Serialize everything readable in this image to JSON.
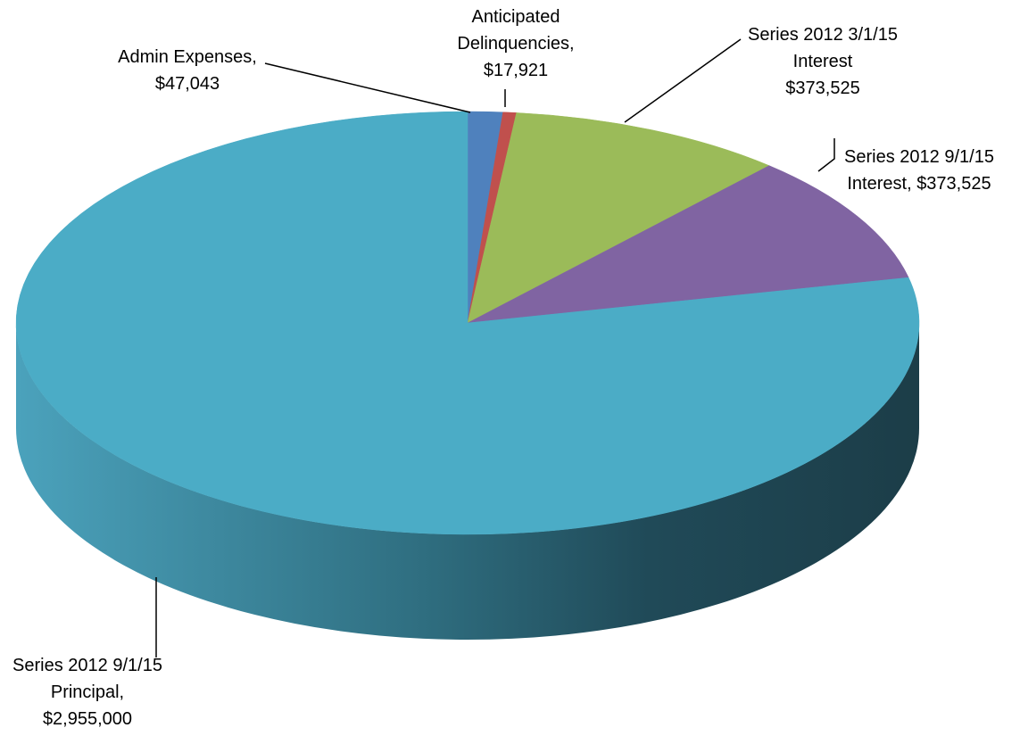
{
  "chart_data": {
    "type": "pie",
    "style": "3d",
    "slices": [
      {
        "category": "Admin Expenses",
        "value": 47043,
        "value_label": "$47,043",
        "color": "#4F81BD",
        "label_lines": [
          "Admin Expenses,",
          "$47,043"
        ]
      },
      {
        "category": "Anticipated Delinquencies",
        "value": 17921,
        "value_label": "$17,921",
        "color": "#C0504D",
        "label_lines": [
          "Anticipated",
          "Delinquencies,",
          "$17,921"
        ]
      },
      {
        "category": "Series 2012 3/1/15 Interest",
        "value": 373525,
        "value_label": "$373,525",
        "color": "#9BBB59",
        "label_lines": [
          "Series 2012 3/1/15",
          "Interest",
          "$373,525"
        ]
      },
      {
        "category": "Series 2012 9/1/15 Interest",
        "value": 373525,
        "value_label": "$373,525",
        "color": "#8064A2",
        "label_lines": [
          "Series 2012 9/1/15",
          "Interest, $373,525"
        ]
      },
      {
        "category": "Series 2012 9/1/15 Principal",
        "value": 2955000,
        "value_label": "$2,955,000",
        "color": "#4BACC6",
        "label_lines": [
          "Series 2012 9/1/15",
          "Principal,",
          "$2,955,000"
        ]
      }
    ]
  }
}
